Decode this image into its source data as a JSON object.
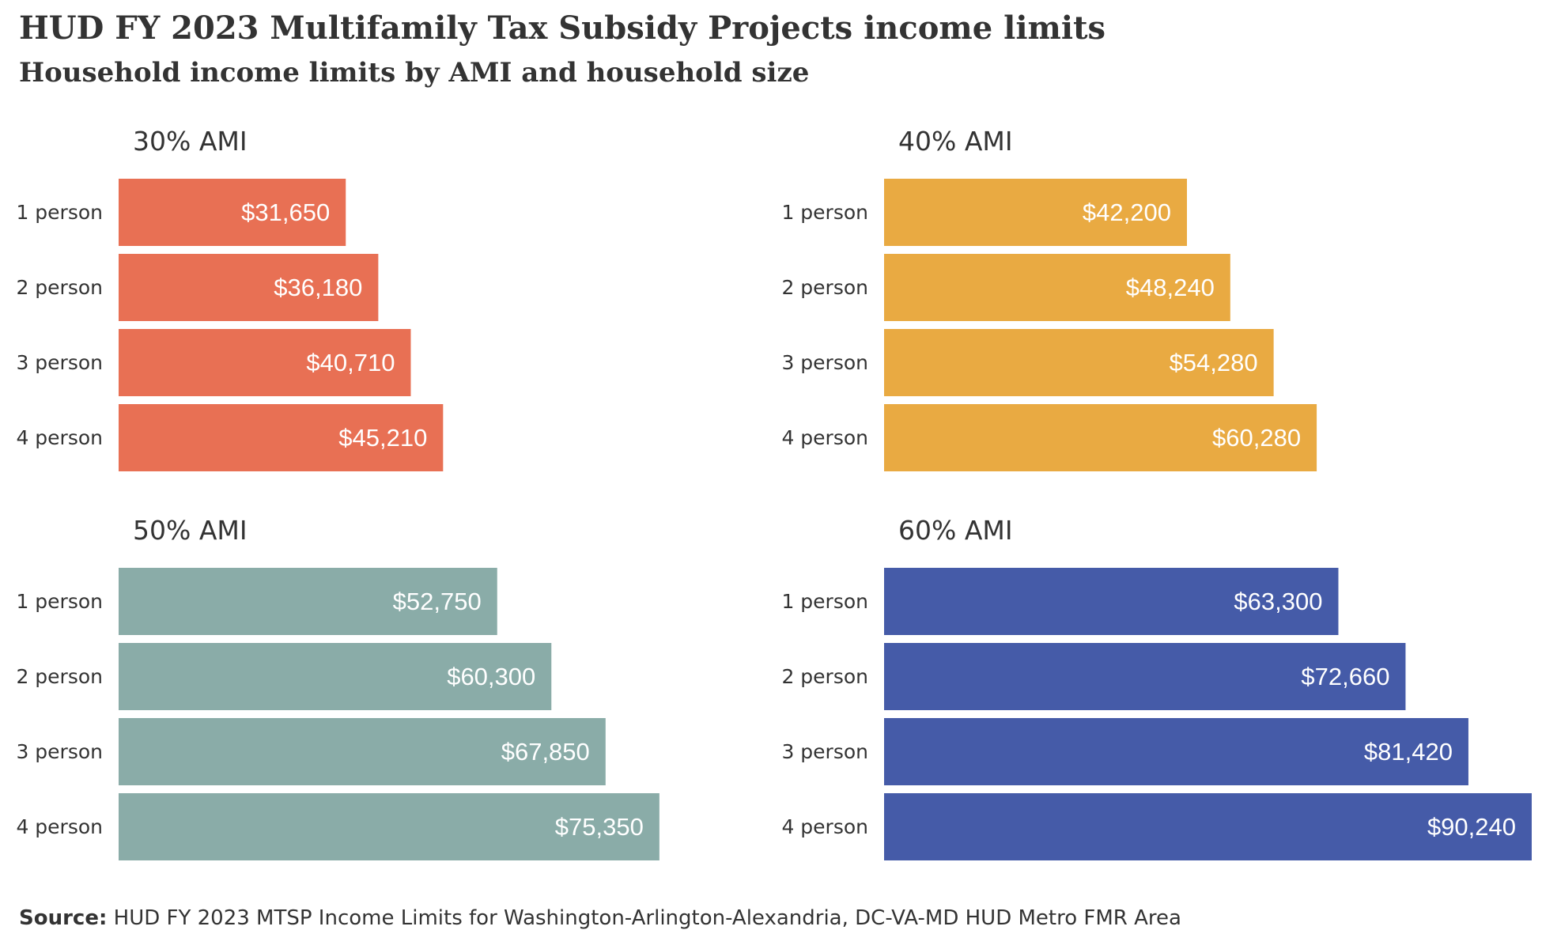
{
  "title": "HUD FY 2023 Multifamily Tax Subsidy Projects income limits",
  "subtitle": "Household income limits by AMI and household size",
  "source": {
    "label": "Source:",
    "text": " HUD FY 2023 MTSP Income Limits for Washington-Arlington-Alexandria, DC-VA-MD HUD Metro FMR Area"
  },
  "chart_data": [
    {
      "type": "bar",
      "orientation": "horizontal",
      "title": "30% AMI",
      "color": "#e87054",
      "categories": [
        "1 person",
        "2 person",
        "3 person",
        "4 person"
      ],
      "values": [
        31650,
        36180,
        40710,
        45210
      ],
      "value_labels": [
        "$31,650",
        "$36,180",
        "$40,710",
        "$45,210"
      ],
      "xlim": [
        0,
        90240
      ],
      "grid": false
    },
    {
      "type": "bar",
      "orientation": "horizontal",
      "title": "40% AMI",
      "color": "#e9aa42",
      "categories": [
        "1 person",
        "2 person",
        "3 person",
        "4 person"
      ],
      "values": [
        42200,
        48240,
        54280,
        60280
      ],
      "value_labels": [
        "$42,200",
        "$48,240",
        "$54,280",
        "$60,280"
      ],
      "xlim": [
        0,
        90240
      ],
      "grid": false
    },
    {
      "type": "bar",
      "orientation": "horizontal",
      "title": "50% AMI",
      "color": "#8aaca8",
      "categories": [
        "1 person",
        "2 person",
        "3 person",
        "4 person"
      ],
      "values": [
        52750,
        60300,
        67850,
        75350
      ],
      "value_labels": [
        "$52,750",
        "$60,300",
        "$67,850",
        "$75,350"
      ],
      "xlim": [
        0,
        90240
      ],
      "grid": false
    },
    {
      "type": "bar",
      "orientation": "horizontal",
      "title": "60% AMI",
      "color": "#455ba8",
      "categories": [
        "1 person",
        "2 person",
        "3 person",
        "4 person"
      ],
      "values": [
        63300,
        72660,
        81420,
        90240
      ],
      "value_labels": [
        "$63,300",
        "$72,660",
        "$81,420",
        "$90,240"
      ],
      "xlim": [
        0,
        90240
      ],
      "grid": false
    }
  ]
}
